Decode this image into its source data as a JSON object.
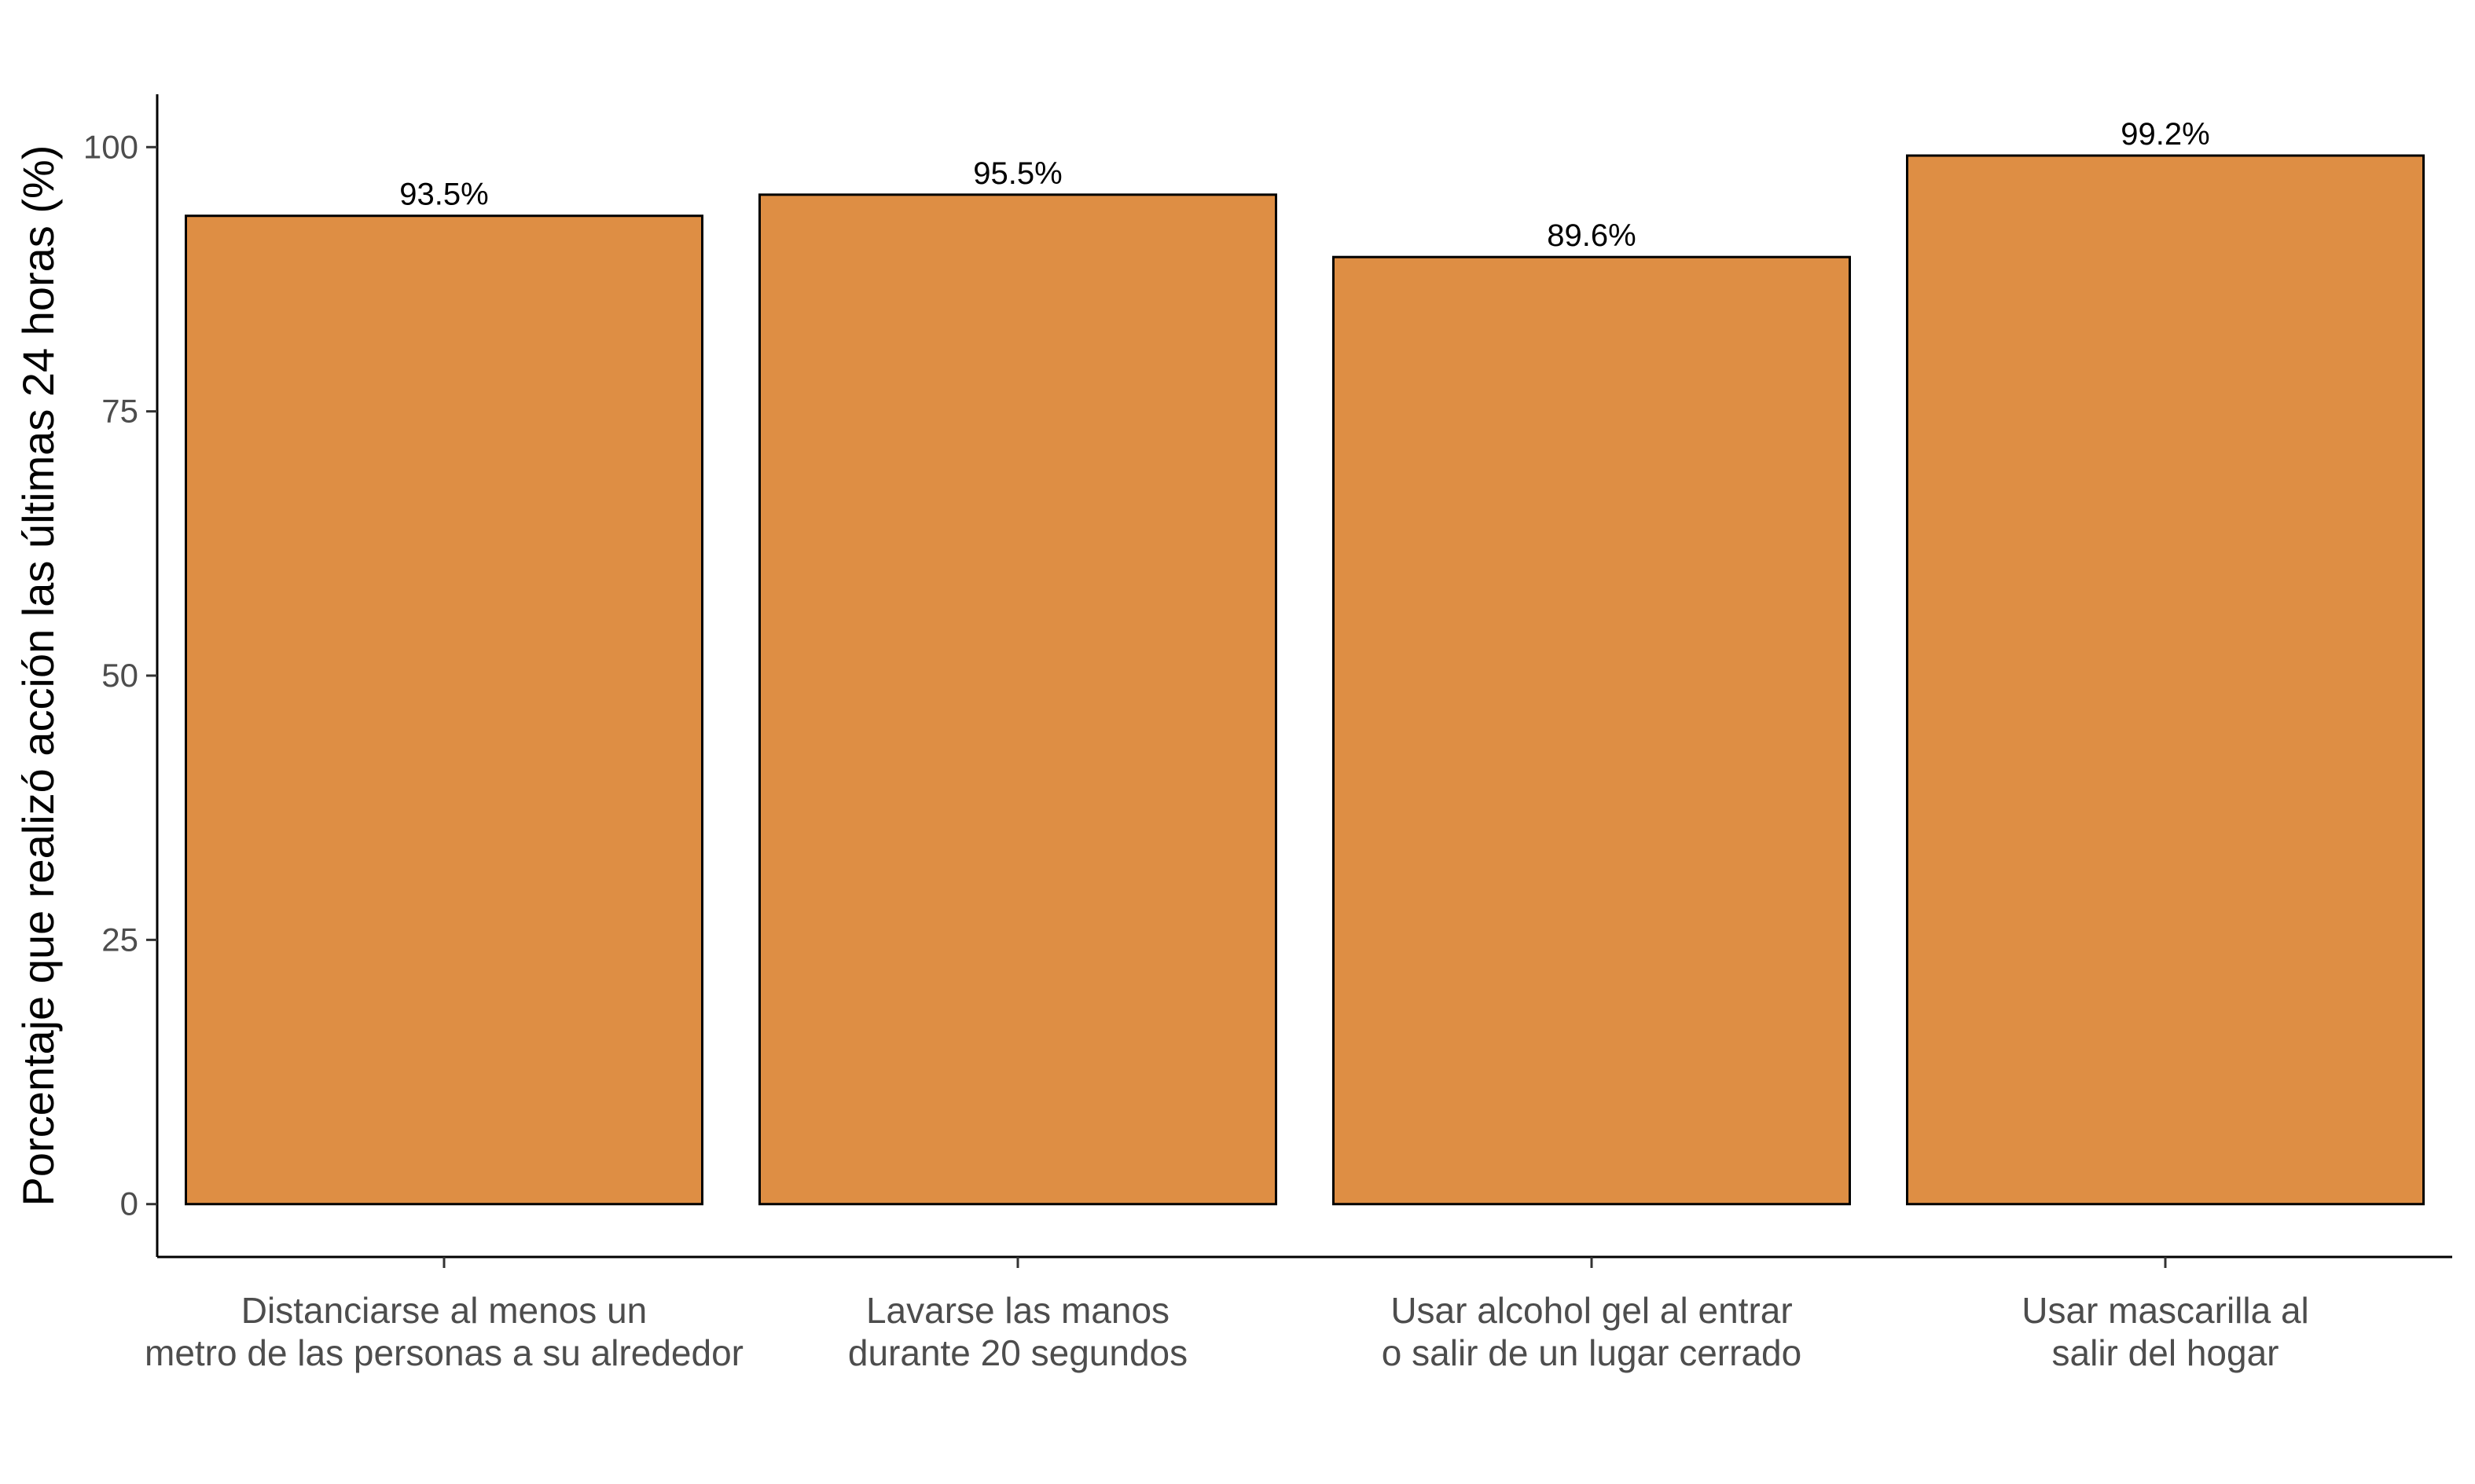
{
  "chart_data": {
    "type": "bar",
    "categories": [
      [
        "Distanciarse al menos un",
        "metro de las personas a su alrededor"
      ],
      [
        "Lavarse las manos",
        "durante 20 segundos"
      ],
      [
        "Usar alcohol gel al entrar",
        "o salir de un lugar cerrado"
      ],
      [
        "Usar mascarilla al",
        "salir del hogar"
      ]
    ],
    "values": [
      93.5,
      95.5,
      89.6,
      99.2
    ],
    "data_labels": [
      "93.5%",
      "95.5%",
      "89.6%",
      "99.2%"
    ],
    "ylabel": "Porcentaje que realizó acción las últimas 24 horas (%)",
    "xlabel": "",
    "ylim": [
      -5,
      105
    ],
    "yticks": [
      0,
      25,
      50,
      75,
      100
    ],
    "ytick_labels": [
      "0",
      "25",
      "50",
      "75",
      "100"
    ],
    "grid": false,
    "bar_color": "#DE8E44",
    "bar_edge_color": "#000000"
  }
}
